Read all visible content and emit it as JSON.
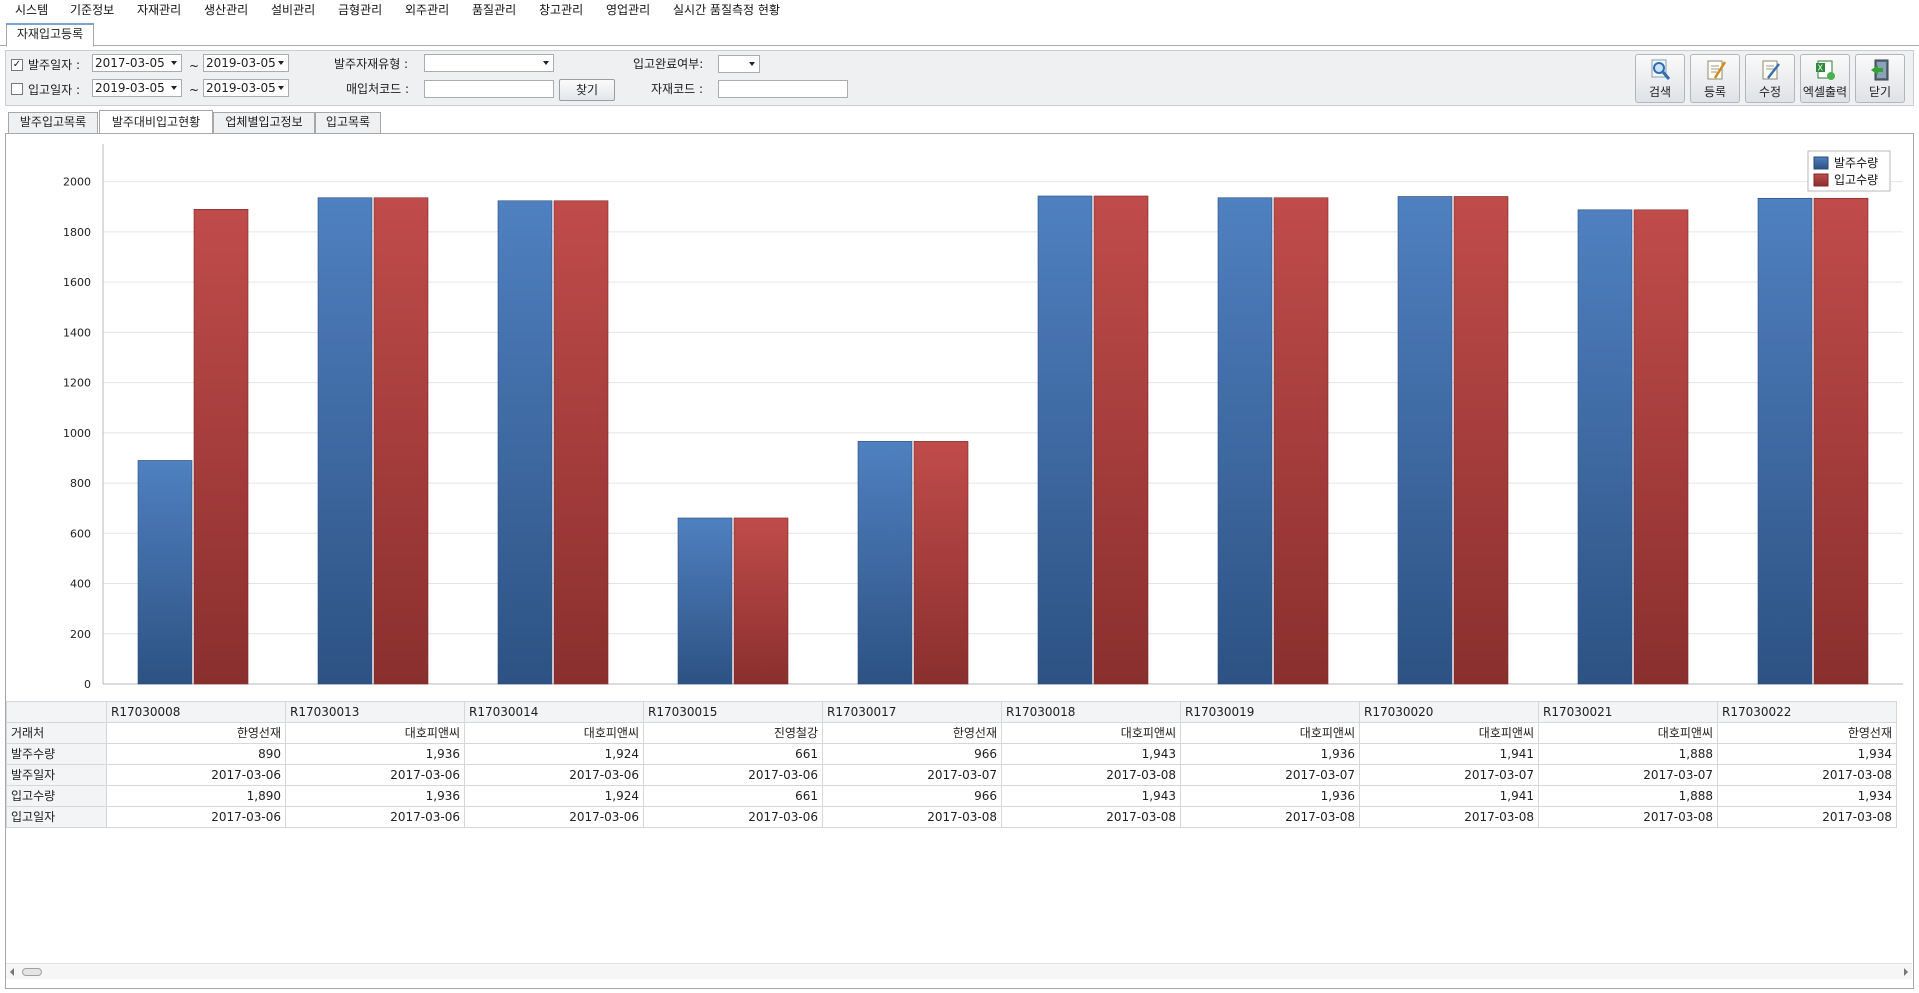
{
  "menu": [
    "시스템",
    "기준정보",
    "자재관리",
    "생산관리",
    "설비관리",
    "금형관리",
    "외주관리",
    "품질관리",
    "창고관리",
    "영업관리",
    "실시간 품질측정 현황"
  ],
  "form_tab": "자재입고등록",
  "filters": {
    "order_date": {
      "checked": true,
      "label": "발주일자 :",
      "from": "2017-03-05",
      "to": "2019-03-05"
    },
    "receive_date": {
      "checked": false,
      "label": "입고일자 :",
      "from": "2019-03-05",
      "to": "2019-03-05"
    },
    "tilde": "~",
    "material_type_label": "발주자재유형 :",
    "material_type_value": "",
    "vendor_code_label": "매입처코드 :",
    "vendor_code_value": "",
    "find_button": "찾기",
    "complete_label": "입고완료여부:",
    "complete_value": "",
    "material_code_label": "자재코드 :",
    "material_code_value": ""
  },
  "toolbar": {
    "search": "검색",
    "register": "등록",
    "edit": "수정",
    "excel": "엑셀출력",
    "close": "닫기"
  },
  "tabs": [
    "발주입고목록",
    "발주대비입고현황",
    "업체별입고정보",
    "입고목록"
  ],
  "active_tab": 1,
  "colors": {
    "order_bar": "#4a78b6",
    "receive_bar": "#b94645"
  },
  "chart_data": {
    "type": "bar",
    "categories": [
      "R17030008",
      "R17030013",
      "R17030014",
      "R17030015",
      "R17030017",
      "R17030018",
      "R17030019",
      "R17030020",
      "R17030021",
      "R17030022"
    ],
    "series": [
      {
        "name": "발주수량",
        "values": [
          890,
          1936,
          1924,
          661,
          966,
          1943,
          1936,
          1941,
          1888,
          1934
        ]
      },
      {
        "name": "입고수량",
        "values": [
          1890,
          1936,
          1924,
          661,
          966,
          1943,
          1936,
          1941,
          1888,
          1934
        ]
      }
    ],
    "ylim": [
      0,
      2150
    ],
    "yticks": [
      "0",
      "200",
      "400",
      "600",
      "800",
      "1000",
      "1200",
      "1400",
      "1600",
      "1800",
      "2000"
    ],
    "grid": true,
    "legend_position": "top-right"
  },
  "table": {
    "row_labels": [
      "거래처",
      "발주수량",
      "발주일자",
      "입고수량",
      "입고일자"
    ],
    "columns": [
      {
        "id": "R17030008",
        "vendor": "한영선재",
        "order_qty": "890",
        "order_date": "2017-03-06",
        "recv_qty": "1,890",
        "recv_date": "2017-03-06"
      },
      {
        "id": "R17030013",
        "vendor": "대호피앤씨",
        "order_qty": "1,936",
        "order_date": "2017-03-06",
        "recv_qty": "1,936",
        "recv_date": "2017-03-06"
      },
      {
        "id": "R17030014",
        "vendor": "대호피앤씨",
        "order_qty": "1,924",
        "order_date": "2017-03-06",
        "recv_qty": "1,924",
        "recv_date": "2017-03-06"
      },
      {
        "id": "R17030015",
        "vendor": "진영철강",
        "order_qty": "661",
        "order_date": "2017-03-06",
        "recv_qty": "661",
        "recv_date": "2017-03-06"
      },
      {
        "id": "R17030017",
        "vendor": "한영선재",
        "order_qty": "966",
        "order_date": "2017-03-07",
        "recv_qty": "966",
        "recv_date": "2017-03-08"
      },
      {
        "id": "R17030018",
        "vendor": "대호피앤씨",
        "order_qty": "1,943",
        "order_date": "2017-03-08",
        "recv_qty": "1,943",
        "recv_date": "2017-03-08"
      },
      {
        "id": "R17030019",
        "vendor": "대호피앤씨",
        "order_qty": "1,936",
        "order_date": "2017-03-07",
        "recv_qty": "1,936",
        "recv_date": "2017-03-08"
      },
      {
        "id": "R17030020",
        "vendor": "대호피앤씨",
        "order_qty": "1,941",
        "order_date": "2017-03-07",
        "recv_qty": "1,941",
        "recv_date": "2017-03-08"
      },
      {
        "id": "R17030021",
        "vendor": "대호피앤씨",
        "order_qty": "1,888",
        "order_date": "2017-03-07",
        "recv_qty": "1,888",
        "recv_date": "2017-03-08"
      },
      {
        "id": "R17030022",
        "vendor": "한영선재",
        "order_qty": "1,934",
        "order_date": "2017-03-08",
        "recv_qty": "1,934",
        "recv_date": "2017-03-08"
      }
    ]
  }
}
